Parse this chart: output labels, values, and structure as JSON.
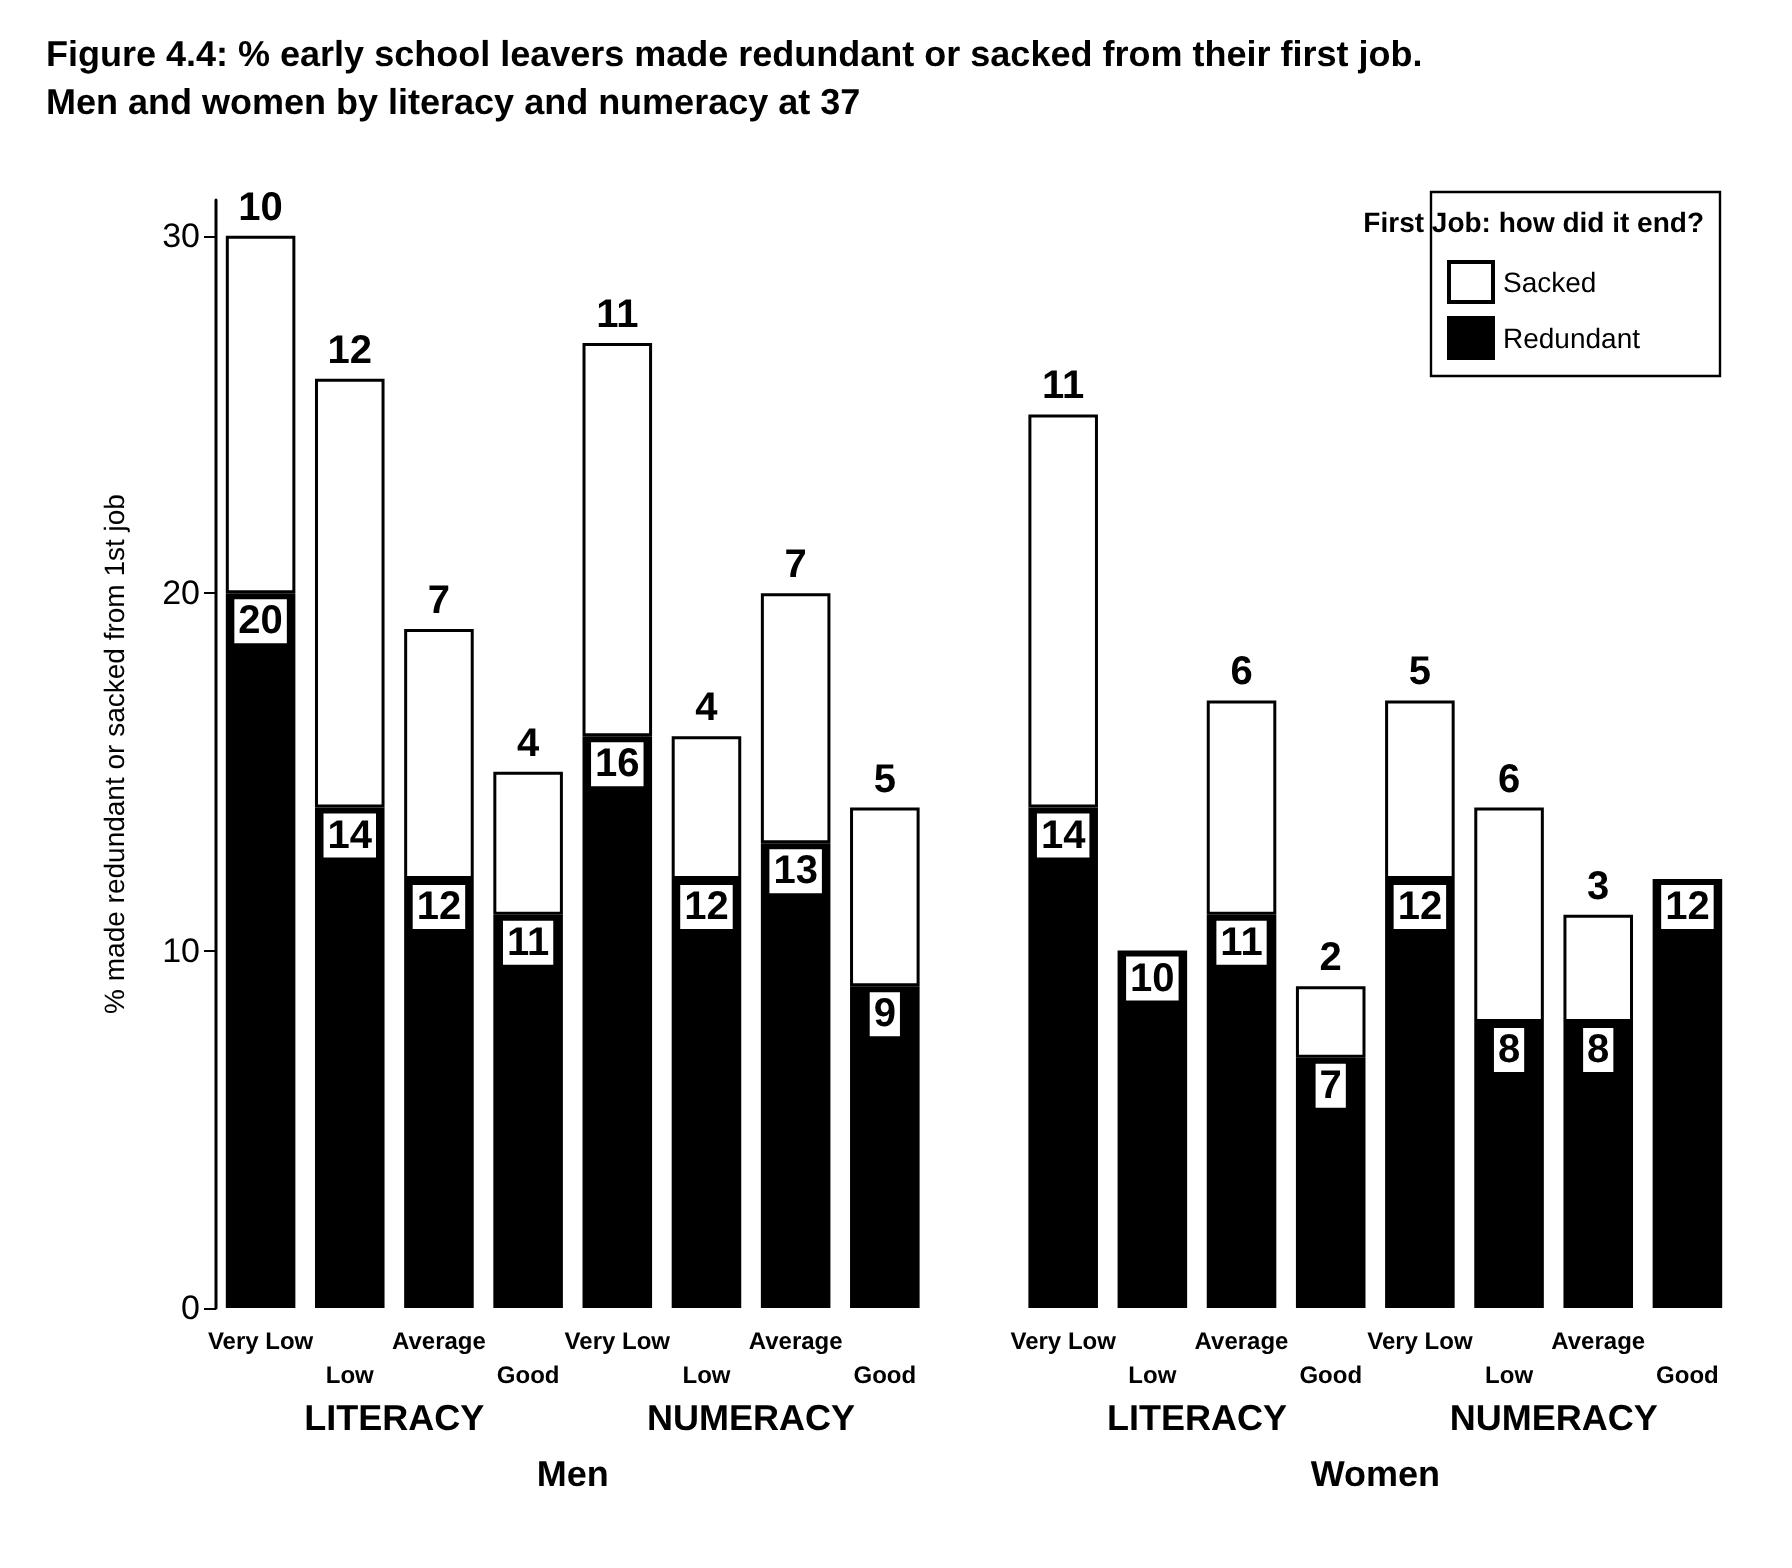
{
  "chart_data": {
    "type": "bar",
    "stacked": true,
    "title": "Figure 4.4: % early school leavers made redundant or sacked from their first job. Men and women by literacy and numeracy at 37",
    "ylabel": "% made redundant or sacked from 1st job",
    "legend_title": "First Job: how did it end?",
    "categories": [
      "Very Low",
      "Low",
      "Average",
      "Good",
      "Very Low",
      "Low",
      "Average",
      "Good",
      null,
      "Very Low",
      "Low",
      "Average",
      "Good",
      "Very Low",
      "Low",
      "Average",
      "Good"
    ],
    "series": [
      {
        "name": "Redundant",
        "color": "#000000",
        "values": [
          20,
          14,
          12,
          11,
          16,
          12,
          13,
          9,
          null,
          14,
          10,
          11,
          7,
          12,
          8,
          8,
          12
        ]
      },
      {
        "name": "Sacked",
        "color": "#ffffff",
        "values": [
          10,
          12,
          7,
          4,
          11,
          4,
          7,
          5,
          null,
          11,
          null,
          6,
          2,
          5,
          6,
          3,
          null
        ]
      }
    ],
    "ylim": [
      0,
      31
    ],
    "yticks": [
      0,
      10,
      20,
      30
    ],
    "grid": false,
    "legend": "top right",
    "data_labels": true,
    "annotations": [
      "LITERACY",
      "NUMERACY",
      "LITERACY",
      "NUMERACY",
      "Men",
      "Women"
    ]
  }
}
